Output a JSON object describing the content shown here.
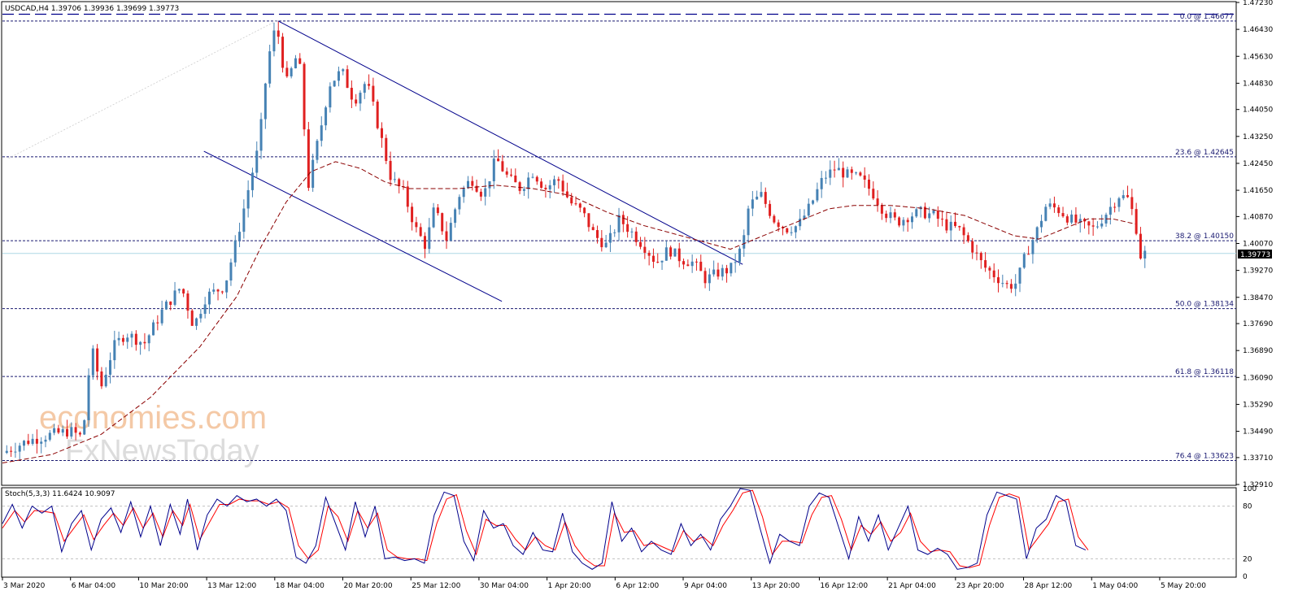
{
  "header": {
    "symbol_line": "USDCAD,H4  1.39706 1.39936 1.39699 1.39773"
  },
  "indicator": {
    "title": "Stoch(5,3,3) 11.6424 10.9097"
  },
  "watermark": {
    "line1": "economies.com",
    "line2": "FxNewsToday"
  },
  "current_price_label": "1.39773",
  "colors": {
    "bull": "#4682b4",
    "bear": "#e02020",
    "ma": "#8b0000",
    "fib": "#191970",
    "channel": "#00008b",
    "price_line": "#add8e6",
    "stoch_main": "#00008b",
    "stoch_signal": "#ff0000"
  },
  "chart_data": {
    "type": "candlestick",
    "timeframe": "H4",
    "ylim": [
      1.3291,
      1.4723
    ],
    "price_ticks": [
      "1.47230",
      "1.46430",
      "1.45630",
      "1.44830",
      "1.44050",
      "1.43250",
      "1.42450",
      "1.41650",
      "1.40870",
      "1.40070",
      "1.39270",
      "1.38470",
      "1.37690",
      "1.36890",
      "1.36090",
      "1.35290",
      "1.34490",
      "1.33710",
      "1.32910"
    ],
    "x_labels": [
      "3 Mar 2020",
      "6 Mar 04:00",
      "10 Mar 20:00",
      "13 Mar 12:00",
      "18 Mar 04:00",
      "20 Mar 20:00",
      "25 Mar 12:00",
      "30 Mar 04:00",
      "1 Apr 20:00",
      "6 Apr 12:00",
      "9 Apr 04:00",
      "13 Apr 20:00",
      "16 Apr 12:00",
      "21 Apr 04:00",
      "23 Apr 20:00",
      "28 Apr 12:00",
      "1 May 04:00",
      "5 May 20:00"
    ],
    "fib_levels": [
      {
        "label": "0.0 @ 1.46677",
        "price": 1.46677
      },
      {
        "label": "23.6 @ 1.42645",
        "price": 1.42645
      },
      {
        "label": "38.2 @ 1.40150",
        "price": 1.4015
      },
      {
        "label": "50.0 @ 1.38134",
        "price": 1.38134
      },
      {
        "label": "61.8 @ 1.36118",
        "price": 1.36118
      },
      {
        "label": "76.4 @ 1.33623",
        "price": 1.33623
      }
    ],
    "fib_top_dashed_price": 1.4688,
    "current_price": 1.39773,
    "channel": {
      "upper": [
        [
          0.2235,
          1.4668
        ],
        [
          0.6,
          1.3945
        ]
      ],
      "lower": [
        [
          0.1633,
          1.4281
        ],
        [
          0.4048,
          1.3835
        ]
      ]
    },
    "price_path": [
      [
        0.0,
        1.3385
      ],
      [
        0.02,
        1.342
      ],
      [
        0.04,
        1.344
      ],
      [
        0.055,
        1.345
      ],
      [
        0.065,
        1.343
      ],
      [
        0.072,
        1.37
      ],
      [
        0.08,
        1.358
      ],
      [
        0.09,
        1.37
      ],
      [
        0.1,
        1.374
      ],
      [
        0.115,
        1.371
      ],
      [
        0.13,
        1.381
      ],
      [
        0.145,
        1.388
      ],
      [
        0.155,
        1.376
      ],
      [
        0.165,
        1.385
      ],
      [
        0.18,
        1.388
      ],
      [
        0.19,
        1.402
      ],
      [
        0.2,
        1.418
      ],
      [
        0.208,
        1.43
      ],
      [
        0.215,
        1.455
      ],
      [
        0.222,
        1.466
      ],
      [
        0.23,
        1.448
      ],
      [
        0.24,
        1.458
      ],
      [
        0.248,
        1.418
      ],
      [
        0.258,
        1.435
      ],
      [
        0.265,
        1.448
      ],
      [
        0.275,
        1.452
      ],
      [
        0.285,
        1.443
      ],
      [
        0.295,
        1.449
      ],
      [
        0.305,
        1.435
      ],
      [
        0.315,
        1.42
      ],
      [
        0.325,
        1.416
      ],
      [
        0.335,
        1.405
      ],
      [
        0.343,
        1.4
      ],
      [
        0.35,
        1.411
      ],
      [
        0.36,
        1.402
      ],
      [
        0.37,
        1.415
      ],
      [
        0.38,
        1.42
      ],
      [
        0.39,
        1.415
      ],
      [
        0.4,
        1.426
      ],
      [
        0.41,
        1.42
      ],
      [
        0.42,
        1.417
      ],
      [
        0.43,
        1.422
      ],
      [
        0.44,
        1.417
      ],
      [
        0.45,
        1.42
      ],
      [
        0.46,
        1.413
      ],
      [
        0.47,
        1.41
      ],
      [
        0.48,
        1.403
      ],
      [
        0.49,
        1.4
      ],
      [
        0.5,
        1.408
      ],
      [
        0.51,
        1.404
      ],
      [
        0.52,
        1.4
      ],
      [
        0.53,
        1.395
      ],
      [
        0.54,
        1.399
      ],
      [
        0.55,
        1.396
      ],
      [
        0.56,
        1.395
      ],
      [
        0.57,
        1.39
      ],
      [
        0.58,
        1.392
      ],
      [
        0.59,
        1.393
      ],
      [
        0.6,
        1.4
      ],
      [
        0.605,
        1.412
      ],
      [
        0.615,
        1.415
      ],
      [
        0.625,
        1.408
      ],
      [
        0.635,
        1.405
      ],
      [
        0.645,
        1.406
      ],
      [
        0.655,
        1.412
      ],
      [
        0.665,
        1.42
      ],
      [
        0.675,
        1.423
      ],
      [
        0.685,
        1.421
      ],
      [
        0.695,
        1.42
      ],
      [
        0.705,
        1.416
      ],
      [
        0.715,
        1.41
      ],
      [
        0.725,
        1.407
      ],
      [
        0.735,
        1.409
      ],
      [
        0.745,
        1.41
      ],
      [
        0.755,
        1.409
      ],
      [
        0.765,
        1.406
      ],
      [
        0.775,
        1.405
      ],
      [
        0.785,
        1.4
      ],
      [
        0.795,
        1.394
      ],
      [
        0.805,
        1.391
      ],
      [
        0.815,
        1.388
      ],
      [
        0.822,
        1.389
      ],
      [
        0.83,
        1.398
      ],
      [
        0.838,
        1.404
      ],
      [
        0.846,
        1.412
      ],
      [
        0.855,
        1.411
      ],
      [
        0.865,
        1.408
      ],
      [
        0.875,
        1.406
      ],
      [
        0.885,
        1.405
      ],
      [
        0.895,
        1.41
      ],
      [
        0.905,
        1.415
      ],
      [
        0.912,
        1.414
      ],
      [
        0.918,
        1.408
      ],
      [
        0.922,
        1.397
      ],
      [
        0.926,
        1.3977
      ]
    ],
    "ma_path": [
      [
        0.0,
        1.3355
      ],
      [
        0.04,
        1.338
      ],
      [
        0.08,
        1.344
      ],
      [
        0.12,
        1.355
      ],
      [
        0.16,
        1.37
      ],
      [
        0.19,
        1.385
      ],
      [
        0.21,
        1.4
      ],
      [
        0.23,
        1.413
      ],
      [
        0.25,
        1.422
      ],
      [
        0.27,
        1.425
      ],
      [
        0.29,
        1.423
      ],
      [
        0.31,
        1.419
      ],
      [
        0.33,
        1.417
      ],
      [
        0.35,
        1.417
      ],
      [
        0.37,
        1.417
      ],
      [
        0.4,
        1.418
      ],
      [
        0.43,
        1.417
      ],
      [
        0.46,
        1.415
      ],
      [
        0.49,
        1.41
      ],
      [
        0.52,
        1.406
      ],
      [
        0.56,
        1.402
      ],
      [
        0.59,
        1.399
      ],
      [
        0.61,
        1.402
      ],
      [
        0.63,
        1.405
      ],
      [
        0.65,
        1.408
      ],
      [
        0.67,
        1.411
      ],
      [
        0.69,
        1.412
      ],
      [
        0.72,
        1.412
      ],
      [
        0.75,
        1.411
      ],
      [
        0.78,
        1.409
      ],
      [
        0.8,
        1.406
      ],
      [
        0.82,
        1.403
      ],
      [
        0.84,
        1.402
      ],
      [
        0.86,
        1.405
      ],
      [
        0.88,
        1.408
      ],
      [
        0.9,
        1.408
      ],
      [
        0.918,
        1.4065
      ]
    ],
    "stoch": {
      "ylim": [
        0,
        100
      ],
      "levels": [
        20,
        80
      ],
      "ticks": [
        "100",
        "80",
        "20",
        "0"
      ],
      "k_path": [
        [
          0.0,
          60
        ],
        [
          0.008,
          82
        ],
        [
          0.016,
          55
        ],
        [
          0.024,
          80
        ],
        [
          0.032,
          72
        ],
        [
          0.04,
          80
        ],
        [
          0.048,
          28
        ],
        [
          0.056,
          60
        ],
        [
          0.064,
          75
        ],
        [
          0.072,
          30
        ],
        [
          0.08,
          65
        ],
        [
          0.088,
          78
        ],
        [
          0.096,
          50
        ],
        [
          0.104,
          85
        ],
        [
          0.112,
          45
        ],
        [
          0.12,
          80
        ],
        [
          0.128,
          35
        ],
        [
          0.136,
          82
        ],
        [
          0.144,
          48
        ],
        [
          0.15,
          88
        ],
        [
          0.158,
          30
        ],
        [
          0.166,
          70
        ],
        [
          0.174,
          88
        ],
        [
          0.182,
          80
        ],
        [
          0.19,
          92
        ],
        [
          0.198,
          85
        ],
        [
          0.206,
          88
        ],
        [
          0.214,
          80
        ],
        [
          0.222,
          88
        ],
        [
          0.23,
          75
        ],
        [
          0.238,
          22
        ],
        [
          0.246,
          15
        ],
        [
          0.254,
          35
        ],
        [
          0.262,
          90
        ],
        [
          0.27,
          60
        ],
        [
          0.278,
          30
        ],
        [
          0.286,
          85
        ],
        [
          0.294,
          45
        ],
        [
          0.302,
          80
        ],
        [
          0.31,
          20
        ],
        [
          0.318,
          22
        ],
        [
          0.326,
          18
        ],
        [
          0.334,
          20
        ],
        [
          0.342,
          15
        ],
        [
          0.35,
          70
        ],
        [
          0.358,
          96
        ],
        [
          0.366,
          92
        ],
        [
          0.374,
          40
        ],
        [
          0.382,
          18
        ],
        [
          0.39,
          75
        ],
        [
          0.398,
          55
        ],
        [
          0.406,
          60
        ],
        [
          0.414,
          35
        ],
        [
          0.422,
          25
        ],
        [
          0.43,
          50
        ],
        [
          0.438,
          30
        ],
        [
          0.446,
          28
        ],
        [
          0.454,
          72
        ],
        [
          0.462,
          28
        ],
        [
          0.47,
          15
        ],
        [
          0.478,
          8
        ],
        [
          0.486,
          15
        ],
        [
          0.494,
          85
        ],
        [
          0.502,
          40
        ],
        [
          0.51,
          55
        ],
        [
          0.518,
          28
        ],
        [
          0.526,
          40
        ],
        [
          0.534,
          30
        ],
        [
          0.542,
          25
        ],
        [
          0.55,
          60
        ],
        [
          0.558,
          35
        ],
        [
          0.566,
          48
        ],
        [
          0.574,
          30
        ],
        [
          0.582,
          65
        ],
        [
          0.59,
          80
        ],
        [
          0.598,
          100
        ],
        [
          0.606,
          98
        ],
        [
          0.614,
          55
        ],
        [
          0.622,
          15
        ],
        [
          0.63,
          48
        ],
        [
          0.638,
          40
        ],
        [
          0.646,
          35
        ],
        [
          0.654,
          80
        ],
        [
          0.662,
          95
        ],
        [
          0.67,
          90
        ],
        [
          0.678,
          55
        ],
        [
          0.686,
          20
        ],
        [
          0.694,
          68
        ],
        [
          0.702,
          40
        ],
        [
          0.71,
          70
        ],
        [
          0.718,
          30
        ],
        [
          0.726,
          55
        ],
        [
          0.734,
          80
        ],
        [
          0.742,
          30
        ],
        [
          0.75,
          25
        ],
        [
          0.758,
          32
        ],
        [
          0.766,
          25
        ],
        [
          0.774,
          8
        ],
        [
          0.782,
          10
        ],
        [
          0.79,
          15
        ],
        [
          0.798,
          70
        ],
        [
          0.806,
          96
        ],
        [
          0.814,
          92
        ],
        [
          0.822,
          88
        ],
        [
          0.83,
          20
        ],
        [
          0.838,
          55
        ],
        [
          0.846,
          65
        ],
        [
          0.854,
          92
        ],
        [
          0.862,
          85
        ],
        [
          0.87,
          35
        ],
        [
          0.878,
          30
        ]
      ],
      "d_path": [
        [
          0.0,
          55
        ],
        [
          0.01,
          75
        ],
        [
          0.018,
          62
        ],
        [
          0.026,
          75
        ],
        [
          0.034,
          74
        ],
        [
          0.042,
          72
        ],
        [
          0.05,
          40
        ],
        [
          0.058,
          55
        ],
        [
          0.066,
          70
        ],
        [
          0.074,
          42
        ],
        [
          0.082,
          58
        ],
        [
          0.09,
          72
        ],
        [
          0.098,
          58
        ],
        [
          0.106,
          78
        ],
        [
          0.114,
          55
        ],
        [
          0.122,
          72
        ],
        [
          0.13,
          45
        ],
        [
          0.138,
          75
        ],
        [
          0.146,
          58
        ],
        [
          0.152,
          82
        ],
        [
          0.16,
          42
        ],
        [
          0.168,
          62
        ],
        [
          0.176,
          82
        ],
        [
          0.184,
          82
        ],
        [
          0.192,
          88
        ],
        [
          0.2,
          86
        ],
        [
          0.208,
          86
        ],
        [
          0.216,
          82
        ],
        [
          0.224,
          85
        ],
        [
          0.232,
          78
        ],
        [
          0.24,
          35
        ],
        [
          0.248,
          20
        ],
        [
          0.256,
          30
        ],
        [
          0.264,
          80
        ],
        [
          0.272,
          68
        ],
        [
          0.28,
          40
        ],
        [
          0.288,
          75
        ],
        [
          0.296,
          55
        ],
        [
          0.304,
          72
        ],
        [
          0.312,
          30
        ],
        [
          0.32,
          22
        ],
        [
          0.328,
          20
        ],
        [
          0.336,
          20
        ],
        [
          0.344,
          18
        ],
        [
          0.352,
          60
        ],
        [
          0.36,
          88
        ],
        [
          0.368,
          93
        ],
        [
          0.376,
          52
        ],
        [
          0.384,
          25
        ],
        [
          0.392,
          65
        ],
        [
          0.4,
          58
        ],
        [
          0.408,
          58
        ],
        [
          0.416,
          42
        ],
        [
          0.424,
          30
        ],
        [
          0.432,
          45
        ],
        [
          0.44,
          35
        ],
        [
          0.448,
          30
        ],
        [
          0.456,
          62
        ],
        [
          0.464,
          35
        ],
        [
          0.472,
          20
        ],
        [
          0.48,
          12
        ],
        [
          0.488,
          12
        ],
        [
          0.496,
          72
        ],
        [
          0.504,
          50
        ],
        [
          0.512,
          52
        ],
        [
          0.52,
          35
        ],
        [
          0.528,
          38
        ],
        [
          0.536,
          33
        ],
        [
          0.544,
          28
        ],
        [
          0.552,
          52
        ],
        [
          0.56,
          40
        ],
        [
          0.568,
          45
        ],
        [
          0.576,
          35
        ],
        [
          0.584,
          58
        ],
        [
          0.592,
          75
        ],
        [
          0.6,
          95
        ],
        [
          0.608,
          98
        ],
        [
          0.616,
          68
        ],
        [
          0.624,
          25
        ],
        [
          0.632,
          40
        ],
        [
          0.64,
          40
        ],
        [
          0.648,
          38
        ],
        [
          0.656,
          70
        ],
        [
          0.664,
          90
        ],
        [
          0.672,
          92
        ],
        [
          0.68,
          65
        ],
        [
          0.688,
          30
        ],
        [
          0.696,
          58
        ],
        [
          0.704,
          48
        ],
        [
          0.712,
          62
        ],
        [
          0.72,
          40
        ],
        [
          0.728,
          50
        ],
        [
          0.736,
          72
        ],
        [
          0.744,
          40
        ],
        [
          0.752,
          28
        ],
        [
          0.76,
          30
        ],
        [
          0.768,
          28
        ],
        [
          0.776,
          12
        ],
        [
          0.784,
          10
        ],
        [
          0.792,
          13
        ],
        [
          0.8,
          58
        ],
        [
          0.808,
          90
        ],
        [
          0.816,
          94
        ],
        [
          0.824,
          90
        ],
        [
          0.832,
          30
        ],
        [
          0.84,
          45
        ],
        [
          0.848,
          60
        ],
        [
          0.856,
          85
        ],
        [
          0.864,
          88
        ],
        [
          0.872,
          45
        ],
        [
          0.88,
          30
        ]
      ]
    }
  }
}
